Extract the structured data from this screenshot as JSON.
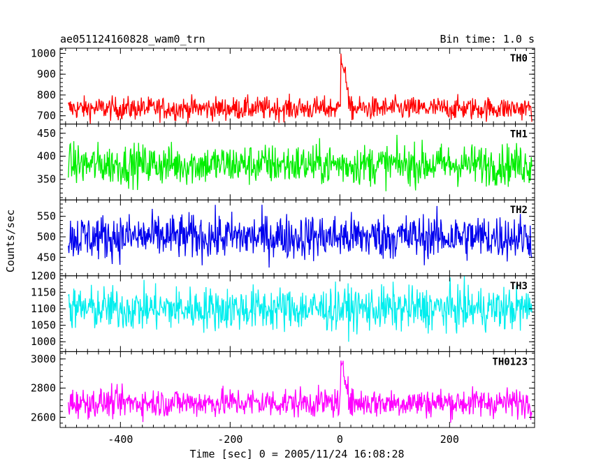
{
  "header": {
    "left": "ae051124160828_wam0_trn",
    "right": "Bin time: 1.0 s"
  },
  "chart_data": {
    "type": "line",
    "title": "ae051124160828_wam0_trn",
    "xlabel": "Time [sec] 0 = 2005/11/24 16:08:28",
    "ylabel": "Counts/sec",
    "bin_time_s": 1.0,
    "xlim": [
      -510,
      355
    ],
    "xticks": [
      -400,
      -200,
      0,
      200
    ],
    "grid": false,
    "panels": [
      {
        "label": "TH0",
        "color": "#ff0000",
        "ylim": [
          660,
          1025
        ],
        "yticks": [
          700,
          800,
          900,
          1000
        ],
        "series": {
          "base": 735,
          "amp": 50,
          "burst_start": 2,
          "burst_end": 15,
          "burst_peak": 990
        }
      },
      {
        "label": "TH1",
        "color": "#00ee00",
        "ylim": [
          305,
          470
        ],
        "yticks": [
          350,
          400,
          450
        ],
        "series": {
          "base": 382,
          "amp": 40
        }
      },
      {
        "label": "TH2",
        "color": "#0000ee",
        "ylim": [
          405,
          590
        ],
        "yticks": [
          450,
          500,
          550
        ],
        "series": {
          "base": 500,
          "amp": 50
        }
      },
      {
        "label": "TH3",
        "color": "#00eeee",
        "ylim": [
          970,
          1200
        ],
        "yticks": [
          1000,
          1050,
          1100,
          1150,
          1200
        ],
        "series": {
          "base": 1100,
          "amp": 60
        }
      },
      {
        "label": "TH0123",
        "color": "#ff00ff",
        "ylim": [
          2530,
          3050
        ],
        "yticks": [
          2600,
          2800,
          3000
        ],
        "series": {
          "base": 2700,
          "amp": 90,
          "burst_start": 2,
          "burst_end": 15,
          "burst_peak": 2950
        }
      }
    ]
  }
}
